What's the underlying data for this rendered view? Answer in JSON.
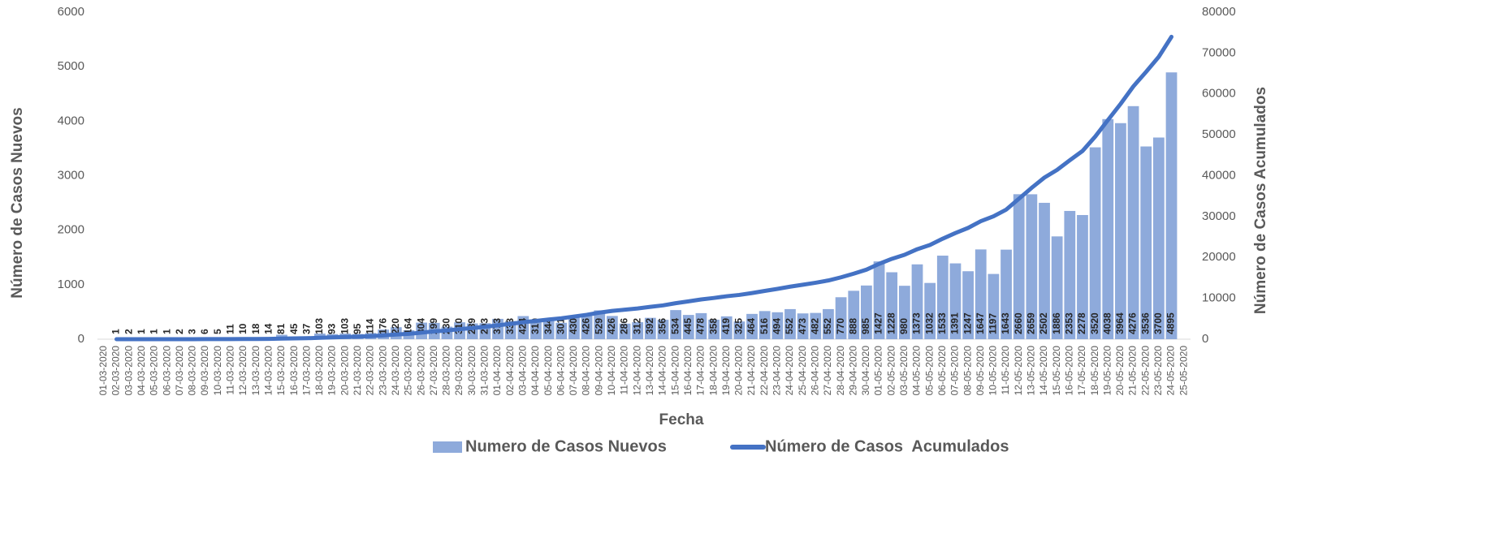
{
  "chart_data": {
    "type": "bar_line",
    "xlabel": "Fecha",
    "ylabel": "Número de Casos Nuevos",
    "y2label": "Número de Casos Acumulados",
    "categories": [
      "01-03-2020",
      "02-03-2020",
      "03-03-2020",
      "04-03-2020",
      "05-03-2020",
      "06-03-2020",
      "07-03-2020",
      "08-03-2020",
      "09-03-2020",
      "10-03-2020",
      "11-03-2020",
      "12-03-2020",
      "13-03-2020",
      "14-03-2020",
      "15-03-2020",
      "16-03-2020",
      "17-03-2020",
      "18-03-2020",
      "19-03-2020",
      "20-03-2020",
      "21-03-2020",
      "22-03-2020",
      "23-03-2020",
      "24-03-2020",
      "25-03-2020",
      "26-03-2020",
      "27-03-2020",
      "28-03-2020",
      "29-03-2020",
      "30-03-2020",
      "31-03-2020",
      "01-04-2020",
      "02-04-2020",
      "03-04-2020",
      "04-04-2020",
      "05-04-2020",
      "06-04-2020",
      "07-04-2020",
      "08-04-2020",
      "09-04-2020",
      "10-04-2020",
      "11-04-2020",
      "12-04-2020",
      "13-04-2020",
      "14-04-2020",
      "15-04-2020",
      "16-04-2020",
      "17-04-2020",
      "18-04-2020",
      "19-04-2020",
      "20-04-2020",
      "21-04-2020",
      "22-04-2020",
      "23-04-2020",
      "24-04-2020",
      "25-04-2020",
      "26-04-2020",
      "27-04-2020",
      "28-04-2020",
      "29-04-2020",
      "30-04-2020",
      "01-05-2020",
      "02-05-2020",
      "03-05-2020",
      "04-05-2020",
      "05-05-2020",
      "06-05-2020",
      "07-05-2020",
      "08-05-2020",
      "09-05-2020",
      "10-05-2020",
      "11-05-2020",
      "12-05-2020",
      "13-05-2020",
      "14-05-2020",
      "15-05-2020",
      "16-05-2020",
      "17-05-2020",
      "18-05-2020",
      "19-05-2020",
      "20-05-2020",
      "21-05-2020",
      "22-05-2020",
      "23-05-2020",
      "24-05-2020",
      "25-05-2020"
    ],
    "series": [
      {
        "name": "Numero de Casos Nuevos",
        "type": "bar",
        "color": "#8eaadb",
        "data_labels": true,
        "values": [
          null,
          1,
          2,
          1,
          1,
          1,
          2,
          3,
          6,
          5,
          11,
          10,
          18,
          14,
          81,
          45,
          37,
          103,
          93,
          103,
          95,
          114,
          176,
          220,
          164,
          304,
          299,
          230,
          310,
          289,
          293,
          373,
          333,
          424,
          310,
          344,
          301,
          430,
          426,
          529,
          426,
          286,
          312,
          392,
          356,
          534,
          445,
          478,
          358,
          419,
          325,
          464,
          516,
          494,
          552,
          473,
          482,
          552,
          770,
          888,
          985,
          1427,
          1228,
          980,
          1373,
          1032,
          1533,
          1391,
          1247,
          1647,
          1197,
          1643,
          2660,
          2659,
          2502,
          1886,
          2353,
          2278,
          3520,
          4038,
          3964,
          4276,
          3536,
          3700,
          4895,
          null
        ]
      },
      {
        "name": "Número de Casos  Acumulados",
        "type": "line",
        "axis": "y2",
        "color": "#4472c4",
        "values": [
          null,
          1,
          3,
          4,
          5,
          6,
          8,
          11,
          17,
          22,
          33,
          43,
          61,
          75,
          156,
          201,
          238,
          341,
          434,
          537,
          632,
          746,
          922,
          1142,
          1306,
          1610,
          1909,
          2139,
          2449,
          2738,
          3031,
          3404,
          3737,
          4161,
          4471,
          4815,
          5116,
          5546,
          5972,
          6501,
          6927,
          7213,
          7525,
          7917,
          8273,
          8807,
          9252,
          9730,
          10088,
          10507,
          10832,
          11296,
          11812,
          12306,
          12858,
          13331,
          13813,
          14365,
          15135,
          16023,
          17008,
          18435,
          19663,
          20643,
          22016,
          23048,
          24581,
          25972,
          27219,
          28866,
          30063,
          31706,
          34366,
          37025,
          39527,
          41413,
          43766,
          46044,
          49564,
          53602,
          57566,
          61842,
          65378,
          69078,
          73973,
          null
        ]
      }
    ],
    "ylim": [
      0,
      6000
    ],
    "yticks": [
      0,
      1000,
      2000,
      3000,
      4000,
      5000,
      6000
    ],
    "y2lim": [
      0,
      80000
    ],
    "y2ticks": [
      0,
      10000,
      20000,
      30000,
      40000,
      50000,
      60000,
      70000,
      80000
    ],
    "grid": false,
    "legend": "bottom"
  }
}
